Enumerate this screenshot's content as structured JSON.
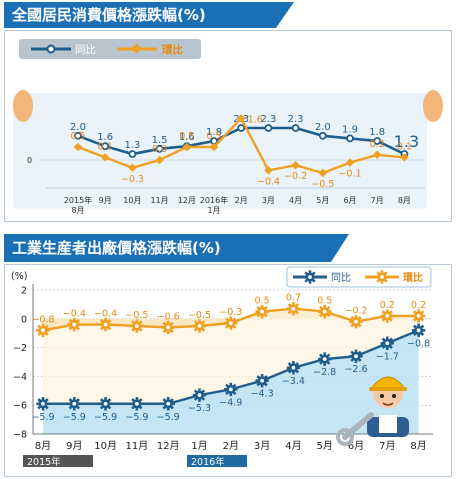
{
  "chart_data": [
    {
      "type": "line",
      "title": "全國居民消費價格漲跌幅(%)",
      "categories": [
        "2015年\n8月",
        "9月",
        "10月",
        "11月",
        "12月",
        "2016年\n1月",
        "2月",
        "3月",
        "4月",
        "5月",
        "6月",
        "7月",
        "8月"
      ],
      "series": [
        {
          "name": "同比",
          "color": "#1f5e8c",
          "values": [
            2.0,
            1.6,
            1.3,
            1.5,
            1.6,
            1.8,
            2.3,
            2.3,
            2.3,
            2.0,
            1.9,
            1.8,
            1.3
          ],
          "labels": [
            "2.0",
            "1.6",
            "1.3",
            "1.5",
            "1.6",
            "1.8",
            "2.3",
            "2.3",
            "2.3",
            "2.0",
            "1.9",
            "1.8",
            "1.3"
          ]
        },
        {
          "name": "環比",
          "color": "#f0a020",
          "values": [
            0.5,
            0.1,
            -0.3,
            0.0,
            0.5,
            0.5,
            1.6,
            -0.4,
            -0.2,
            -0.5,
            -0.1,
            0.2,
            0.1
          ],
          "labels": [
            "0.5",
            "0.1",
            "−0.3",
            "0.0",
            "0.5",
            "0.5",
            "1.6",
            "−0.4",
            "−0.2",
            "−0.5",
            "−0.1",
            "0.2",
            "0.1"
          ]
        }
      ],
      "y_tick": "0",
      "legend": "top-left"
    },
    {
      "type": "line",
      "title": "工業生産者出廠價格漲跌幅(%)",
      "ylabel": "(%)",
      "categories": [
        "8月",
        "9月",
        "10月",
        "11月",
        "12月",
        "1月",
        "2月",
        "3月",
        "4月",
        "5月",
        "6月",
        "7月",
        "8月"
      ],
      "year_labels": [
        "2015年",
        "2016年"
      ],
      "ylim": [
        -8,
        2
      ],
      "yticks": [
        "2",
        "0",
        "−2",
        "−4",
        "−6",
        "−8"
      ],
      "series": [
        {
          "name": "同比",
          "color": "#1f5e8c",
          "values": [
            -5.9,
            -5.9,
            -5.9,
            -5.9,
            -5.9,
            -5.3,
            -4.9,
            -4.3,
            -3.4,
            -2.8,
            -2.6,
            -1.7,
            -0.8
          ],
          "labels": [
            "−5.9",
            "−5.9",
            "−5.9",
            "−5.9",
            "−5.9",
            "−5.3",
            "−4.9",
            "−4.3",
            "−3.4",
            "−2.8",
            "−2.6",
            "−1.7",
            "−0.8"
          ]
        },
        {
          "name": "環比",
          "color": "#f0a020",
          "values": [
            -0.8,
            -0.4,
            -0.4,
            -0.5,
            -0.6,
            -0.5,
            -0.3,
            0.5,
            0.7,
            0.5,
            -0.2,
            0.2,
            0.2
          ],
          "labels": [
            "−0.8",
            "−0.4",
            "−0.4",
            "−0.5",
            "−0.6",
            "−0.5",
            "−0.3",
            "0.5",
            "0.7",
            "0.5",
            "−0.2",
            "0.2",
            "0.2"
          ]
        }
      ],
      "grid": true,
      "legend": "top-right"
    }
  ]
}
